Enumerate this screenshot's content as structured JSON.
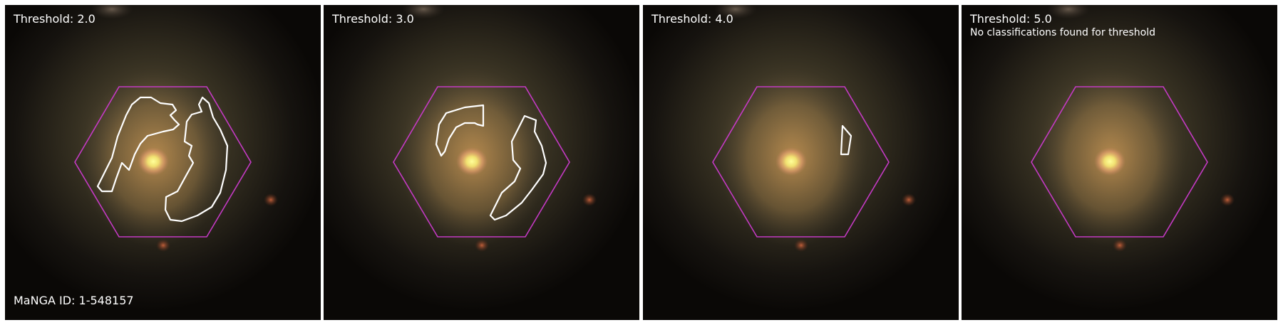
{
  "panels": [
    {
      "threshold_label": "Threshold: 2.0",
      "note": ""
    },
    {
      "threshold_label": "Threshold: 3.0",
      "note": ""
    },
    {
      "threshold_label": "Threshold: 4.0",
      "note": ""
    },
    {
      "threshold_label": "Threshold: 5.0",
      "note": "No classifications found for threshold"
    }
  ],
  "manga_id_label": "MaNGA ID: 1-548157",
  "colors": {
    "hexagon": "#c43ac4",
    "contour": "#ffffff",
    "galaxy_core": "#f0ee70",
    "galaxy_disk": "#a8844a",
    "background": "#0a0806"
  },
  "icons": [
    "galaxy-image",
    "hexagon-footprint",
    "classification-contour"
  ]
}
